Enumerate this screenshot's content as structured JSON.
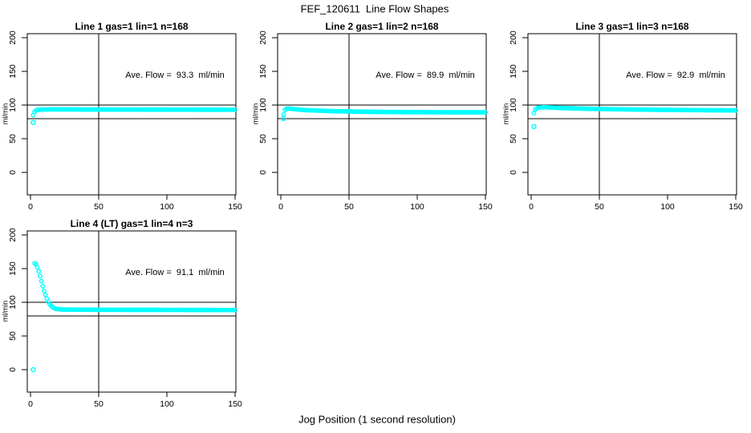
{
  "chart_data": {
    "type": "scatter",
    "title": "FEF_120611  Line Flow Shapes",
    "xlabel": "Jog Position (1 second resolution)",
    "ylabel": "ml/min",
    "x_ticks": [
      0,
      50,
      100,
      150
    ],
    "y_ticks": [
      0,
      50,
      100,
      150,
      200
    ],
    "xlim": [
      -2,
      152
    ],
    "ylim": [
      -33,
      206
    ],
    "grid": false,
    "legend": "none",
    "ref_lines_y": [
      80,
      100
    ],
    "ref_line_x": 50,
    "point_color": "#00FFFF",
    "x_resolution_seconds": 1,
    "charts": [
      {
        "title": "Line 1 gas=1 lin=1 n=168",
        "annotation": "Ave. Flow =  93.3  ml/min",
        "ave_flow": 93.3,
        "x_start": 2,
        "x_end": 150,
        "curve": [
          [
            2,
            85
          ],
          [
            3,
            90
          ],
          [
            4,
            92
          ],
          [
            5,
            92.8
          ],
          [
            8,
            93.3
          ],
          [
            15,
            93.6
          ],
          [
            40,
            93.4
          ],
          [
            100,
            93.2
          ],
          [
            150,
            93.0
          ]
        ],
        "outliers": [
          [
            2,
            74
          ]
        ]
      },
      {
        "title": "Line 2 gas=1 lin=2 n=168",
        "annotation": "Ave. Flow =  89.9  ml/min",
        "ave_flow": 89.9,
        "x_start": 2,
        "x_end": 150,
        "curve": [
          [
            2,
            86
          ],
          [
            3,
            92.5
          ],
          [
            4,
            94.5
          ],
          [
            6,
            94.8
          ],
          [
            10,
            93.8
          ],
          [
            20,
            92.3
          ],
          [
            40,
            90.8
          ],
          [
            70,
            89.8
          ],
          [
            110,
            89.3
          ],
          [
            150,
            89.2
          ]
        ],
        "outliers": [
          [
            2,
            80
          ]
        ]
      },
      {
        "title": "Line 3 gas=1 lin=3 n=168",
        "annotation": "Ave. Flow =  92.9  ml/min",
        "ave_flow": 92.9,
        "x_start": 2,
        "x_end": 150,
        "curve": [
          [
            2,
            88
          ],
          [
            3,
            93.5
          ],
          [
            5,
            96
          ],
          [
            9,
            96.8
          ],
          [
            18,
            96
          ],
          [
            35,
            94.8
          ],
          [
            60,
            93.8
          ],
          [
            100,
            92.8
          ],
          [
            150,
            92.0
          ]
        ],
        "outliers": [
          [
            2,
            68
          ]
        ]
      },
      {
        "title": "Line 4 (LT) gas=1 lin=4 n=3",
        "annotation": "Ave. Flow =  91.1  ml/min",
        "ave_flow": 91.1,
        "x_start": 3,
        "x_end": 150,
        "curve": [
          [
            3,
            158
          ],
          [
            4,
            156.5
          ],
          [
            5,
            152
          ],
          [
            6,
            146
          ],
          [
            7,
            139
          ],
          [
            8,
            131.5
          ],
          [
            9,
            124
          ],
          [
            10,
            117
          ],
          [
            11,
            111
          ],
          [
            12,
            105.5
          ],
          [
            13,
            101
          ],
          [
            14,
            97.5
          ],
          [
            15,
            95
          ],
          [
            16,
            93
          ],
          [
            17,
            91.8
          ],
          [
            18,
            90.8
          ],
          [
            20,
            89.8
          ],
          [
            24,
            89.2
          ],
          [
            35,
            89.0
          ],
          [
            70,
            88.8
          ],
          [
            110,
            88.7
          ],
          [
            150,
            88.5
          ]
        ],
        "outliers": [
          [
            2,
            0
          ]
        ]
      }
    ]
  }
}
